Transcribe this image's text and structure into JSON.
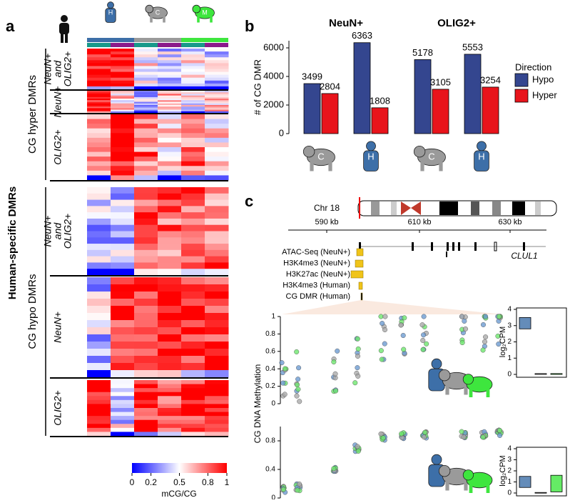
{
  "panel_labels": [
    "a",
    "b",
    "c"
  ],
  "panel_a": {
    "title": "Human-specific DMRs",
    "groups": [
      {
        "label": "CG hyper DMRs",
        "blocks": [
          [
            "NeuN+",
            "and",
            "OLIG2+"
          ],
          [
            "NeuN+"
          ],
          [
            "OLIG2+"
          ]
        ]
      },
      {
        "label": "CG hypo DMRs",
        "blocks": [
          [
            "NeuN+",
            "and",
            "OLIG2+"
          ],
          [
            "NeuN+"
          ],
          [
            "OLIG2+"
          ]
        ]
      }
    ],
    "species": [
      "H",
      "C",
      "M"
    ],
    "colorbar": {
      "ticks": [
        0,
        0.2,
        0.5,
        0.8,
        1
      ],
      "label": "mCG/CG"
    }
  },
  "chart_data": {
    "type": "bar",
    "ylabel": "# of CG DMR",
    "facets": [
      "NeuN+",
      "OLIG2+"
    ],
    "categories": [
      "C",
      "H",
      "C",
      "H"
    ],
    "series": [
      {
        "name": "Hypo",
        "color": "#34468f",
        "values": [
          3499,
          6363,
          5178,
          5553
        ]
      },
      {
        "name": "Hyper",
        "color": "#e8141b",
        "values": [
          2804,
          1808,
          3105,
          3254
        ]
      }
    ],
    "ylim": [
      0,
      6500
    ],
    "yticks": [
      0,
      2000,
      4000,
      6000
    ],
    "legend_title": "Direction",
    "legend": "right"
  },
  "panel_c": {
    "chromosome": "Chr 18",
    "positions": [
      "590 kb",
      "610 kb",
      "630 kb"
    ],
    "gene": "CLUL1",
    "tracks": [
      "ATAC-Seq (NeuN+)",
      "H3K4me3 (NeuN+)",
      "H3K27ac (NeuN+)",
      "H3K4me3 (Human)",
      "CG DMR (Human)"
    ],
    "methylation": {
      "ylabel": "CG DNA Methylation",
      "yticks": [
        0,
        0.2,
        0.4,
        0.6,
        0.8,
        1
      ]
    },
    "expression": {
      "ylabel": "log₂CPM",
      "yticks": [
        0,
        1,
        2,
        3,
        4
      ]
    }
  }
}
